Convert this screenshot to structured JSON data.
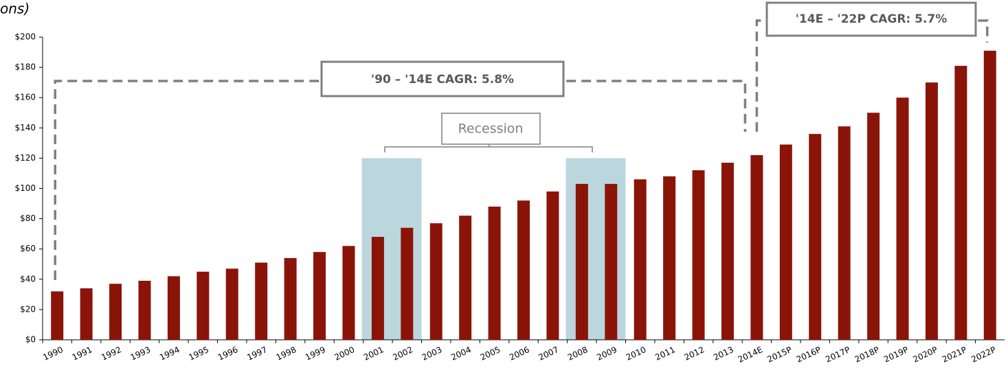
{
  "chart_data": {
    "type": "bar",
    "title": "ons)",
    "categories": [
      "1990",
      "1991",
      "1992",
      "1993",
      "1994",
      "1995",
      "1996",
      "1997",
      "1998",
      "1999",
      "2000",
      "2001",
      "2002",
      "2003",
      "2004",
      "2005",
      "2006",
      "2007",
      "2008",
      "2009",
      "2010",
      "2011",
      "2012",
      "2013",
      "2014E",
      "2015P",
      "2016P",
      "2017P",
      "2018P",
      "2019P",
      "2020P",
      "2021P",
      "2022P"
    ],
    "values": [
      32,
      34,
      37,
      39,
      42,
      45,
      47,
      51,
      54,
      58,
      62,
      68,
      74,
      77,
      82,
      88,
      92,
      98,
      103,
      103,
      106,
      108,
      112,
      117,
      122,
      129,
      136,
      141,
      150,
      160,
      170,
      181,
      191
    ],
    "color": "#8b1409",
    "ylim": [
      0,
      200
    ],
    "yticks": [
      {
        "value": 0,
        "label": "$0"
      },
      {
        "value": 20,
        "label": "$20"
      },
      {
        "value": 40,
        "label": "$40"
      },
      {
        "value": 60,
        "label": "$60"
      },
      {
        "value": 80,
        "label": "$80"
      },
      {
        "value": 100,
        "label": "$100"
      },
      {
        "value": 120,
        "label": "$120"
      },
      {
        "value": 140,
        "label": "$140"
      },
      {
        "value": 160,
        "label": "$160"
      },
      {
        "value": 180,
        "label": "$180"
      },
      {
        "value": 200,
        "label": "$200"
      }
    ],
    "annotations": [
      "'90 – '14E CAGR: 5.8%",
      "'14E – '22P CAGR: 5.7%",
      "Recession"
    ],
    "recession_bands": [
      {
        "from": 11,
        "to": 12,
        "top": 120,
        "color": "#bcd6de"
      },
      {
        "from": 18,
        "to": 19,
        "top": 120,
        "color": "#bcd6de"
      }
    ]
  }
}
